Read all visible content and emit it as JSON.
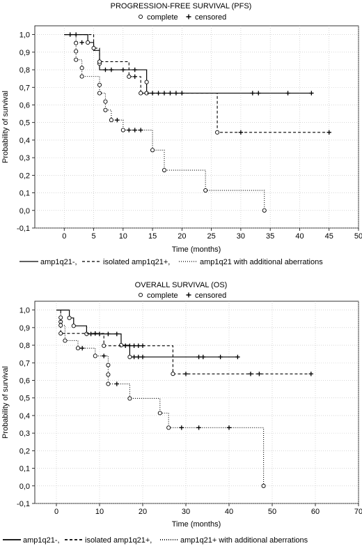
{
  "chart_data": [
    {
      "type": "line",
      "title": "PROGRESSION-FREE SURVIVAL (PFS)",
      "marker_legend": [
        {
          "symbol": "circle",
          "label": "complete"
        },
        {
          "symbol": "plus",
          "label": "censored"
        }
      ],
      "xlabel": "Time (months)",
      "ylabel": "Probability of survival",
      "xlim": [
        -5,
        50
      ],
      "ylim": [
        -0.1,
        1.05
      ],
      "xticks": [
        0,
        5,
        10,
        15,
        20,
        25,
        30,
        35,
        40,
        45,
        50
      ],
      "xtick_labels": [
        "0",
        "5",
        "10",
        "15",
        "20",
        "25",
        "30",
        "35",
        "40",
        "45",
        "50"
      ],
      "yticks": [
        -0.1,
        0.0,
        0.1,
        0.2,
        0.3,
        0.4,
        0.5,
        0.6,
        0.7,
        0.8,
        0.9,
        1.0
      ],
      "ytick_labels": [
        "-0,1",
        "0,0",
        "0,1",
        "0,2",
        "0,3",
        "0,4",
        "0,5",
        "0,6",
        "0,7",
        "0,8",
        "0,9",
        "1,0"
      ],
      "grid": true,
      "legend_position": "bottom",
      "series": [
        {
          "name": "amp1q21-",
          "style": "solid",
          "x": [
            0,
            4,
            5,
            6,
            14,
            42
          ],
          "y": [
            1.0,
            0.955,
            0.91,
            0.8,
            0.667,
            0.667
          ],
          "events": [
            [
              4,
              0.955
            ],
            [
              6,
              0.835
            ],
            [
              14,
              0.73
            ],
            [
              14,
              0.667
            ]
          ],
          "censored": [
            [
              3,
              0.955
            ],
            [
              7,
              0.8
            ],
            [
              8,
              0.8
            ],
            [
              10,
              0.8
            ],
            [
              12,
              0.8
            ],
            [
              15,
              0.667
            ],
            [
              16,
              0.667
            ],
            [
              17,
              0.667
            ],
            [
              18,
              0.667
            ],
            [
              19,
              0.667
            ],
            [
              20,
              0.667
            ],
            [
              32,
              0.667
            ],
            [
              33,
              0.667
            ],
            [
              38,
              0.667
            ],
            [
              42,
              0.667
            ]
          ]
        },
        {
          "name": "isolated amp1q21+",
          "style": "dashed",
          "x": [
            0,
            5,
            6,
            11,
            13,
            26,
            45
          ],
          "y": [
            1.0,
            0.923,
            0.846,
            0.761,
            0.667,
            0.444,
            0.444
          ],
          "events": [
            [
              5,
              0.923
            ],
            [
              6,
              0.846
            ],
            [
              11,
              0.761
            ],
            [
              13,
              0.667
            ],
            [
              26,
              0.444
            ]
          ],
          "censored": [
            [
              2,
              1.0
            ],
            [
              12,
              0.761
            ],
            [
              30,
              0.444
            ],
            [
              45,
              0.444
            ]
          ]
        },
        {
          "name": "amp1q21 with additional aberrations",
          "style": "dotted",
          "x": [
            0,
            2,
            3,
            6,
            7,
            8,
            10,
            15,
            17,
            24,
            34
          ],
          "y": [
            1.0,
            0.857,
            0.762,
            0.667,
            0.571,
            0.514,
            0.457,
            0.343,
            0.229,
            0.114,
            0.0
          ],
          "events": [
            [
              2,
              0.952
            ],
            [
              2,
              0.905
            ],
            [
              2,
              0.857
            ],
            [
              3,
              0.81
            ],
            [
              3,
              0.762
            ],
            [
              6,
              0.714
            ],
            [
              6,
              0.667
            ],
            [
              7,
              0.619
            ],
            [
              7,
              0.571
            ],
            [
              8,
              0.514
            ],
            [
              10,
              0.457
            ],
            [
              15,
              0.343
            ],
            [
              17,
              0.229
            ],
            [
              24,
              0.114
            ],
            [
              34,
              0.0
            ]
          ],
          "censored": [
            [
              1,
              1.0
            ],
            [
              9,
              0.514
            ],
            [
              11,
              0.457
            ],
            [
              12,
              0.457
            ],
            [
              13,
              0.457
            ]
          ]
        }
      ],
      "legend_entries": [
        {
          "style": "solid",
          "label": "amp1q21-,"
        },
        {
          "style": "dashed",
          "label": "isolated amp1q21+,"
        },
        {
          "style": "dotted",
          "label": "amp1q21 with additional aberrations"
        }
      ]
    },
    {
      "type": "line",
      "title": "OVERALL SURVIVAL (OS)",
      "marker_legend": [
        {
          "symbol": "circle",
          "label": "complete"
        },
        {
          "symbol": "plus",
          "label": "censored"
        }
      ],
      "xlabel": "Time (months)",
      "ylabel": "Probability of survival",
      "xlim": [
        -5,
        70
      ],
      "ylim": [
        -0.1,
        1.05
      ],
      "xticks": [
        0,
        10,
        20,
        30,
        40,
        50,
        60,
        70
      ],
      "xtick_labels": [
        "0",
        "10",
        "20",
        "30",
        "40",
        "50",
        "60",
        "70"
      ],
      "yticks": [
        -0.1,
        0.0,
        0.1,
        0.2,
        0.3,
        0.4,
        0.5,
        0.6,
        0.7,
        0.8,
        0.9,
        1.0
      ],
      "ytick_labels": [
        "-0,1",
        "0,0",
        "0,1",
        "0,2",
        "0,3",
        "0,4",
        "0,5",
        "0,6",
        "0,7",
        "0,8",
        "0,9",
        "1,0"
      ],
      "grid": true,
      "legend_position": "bottom",
      "series": [
        {
          "name": "amp1q21-",
          "style": "solid",
          "x": [
            0,
            3,
            4,
            7,
            15,
            17,
            42
          ],
          "y": [
            1.0,
            0.955,
            0.91,
            0.864,
            0.8,
            0.733,
            0.733
          ],
          "events": [
            [
              3,
              0.955
            ],
            [
              4,
              0.91
            ],
            [
              7,
              0.864
            ],
            [
              15,
              0.8
            ],
            [
              17,
              0.733
            ]
          ],
          "censored": [
            [
              8,
              0.864
            ],
            [
              10,
              0.864
            ],
            [
              12,
              0.864
            ],
            [
              14,
              0.864
            ],
            [
              18,
              0.733
            ],
            [
              19,
              0.733
            ],
            [
              20,
              0.733
            ],
            [
              33,
              0.733
            ],
            [
              34,
              0.733
            ],
            [
              38,
              0.733
            ],
            [
              42,
              0.733
            ]
          ]
        },
        {
          "name": "isolated amp1q21+",
          "style": "dashed",
          "x": [
            0,
            1,
            11,
            27,
            59
          ],
          "y": [
            1.0,
            0.867,
            0.797,
            0.637,
            0.637
          ],
          "events": [
            [
              1,
              0.933
            ],
            [
              1,
              0.867
            ],
            [
              11,
              0.797
            ],
            [
              27,
              0.637
            ]
          ],
          "censored": [
            [
              9,
              0.867
            ],
            [
              16,
              0.797
            ],
            [
              17,
              0.797
            ],
            [
              18,
              0.797
            ],
            [
              19,
              0.797
            ],
            [
              20,
              0.797
            ],
            [
              30,
              0.637
            ],
            [
              45,
              0.637
            ],
            [
              47,
              0.637
            ],
            [
              59,
              0.637
            ]
          ]
        },
        {
          "name": "amp1q21+ with additional aberrations",
          "style": "dotted",
          "x": [
            0,
            1,
            2,
            5,
            9,
            12,
            17,
            24,
            26,
            48
          ],
          "y": [
            1.0,
            0.913,
            0.826,
            0.783,
            0.739,
            0.58,
            0.497,
            0.414,
            0.331,
            0.0
          ],
          "events": [
            [
              1,
              0.957
            ],
            [
              1,
              0.913
            ],
            [
              2,
              0.826
            ],
            [
              5,
              0.783
            ],
            [
              9,
              0.739
            ],
            [
              12,
              0.687
            ],
            [
              12,
              0.633
            ],
            [
              12,
              0.58
            ],
            [
              17,
              0.497
            ],
            [
              24,
              0.414
            ],
            [
              26,
              0.331
            ],
            [
              48,
              0.0
            ]
          ],
          "censored": [
            [
              6,
              0.783
            ],
            [
              11,
              0.739
            ],
            [
              14,
              0.58
            ],
            [
              29,
              0.331
            ],
            [
              33,
              0.331
            ],
            [
              40,
              0.331
            ]
          ]
        }
      ],
      "legend_entries": [
        {
          "style": "solid",
          "label": "amp1q21-,"
        },
        {
          "style": "dashed",
          "label": "isolated amp1q21+,"
        },
        {
          "style": "dotted",
          "label": "amp1q21+ with additional aberrations"
        }
      ]
    }
  ]
}
